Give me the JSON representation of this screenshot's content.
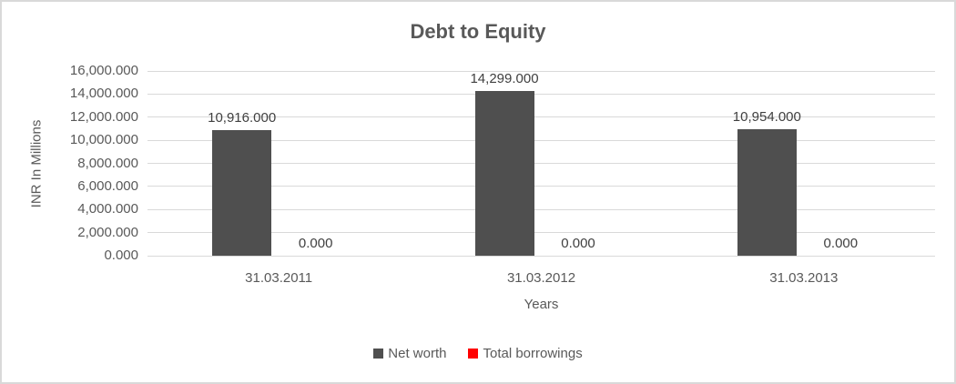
{
  "chart_data": {
    "type": "bar",
    "title": "Debt to Equity",
    "xlabel": "Years",
    "ylabel": "INR In Millions",
    "categories": [
      "31.03.2011",
      "31.03.2012",
      "31.03.2013"
    ],
    "series": [
      {
        "name": "Net worth",
        "color": "#4f4f4f",
        "values": [
          10916.0,
          14299.0,
          10954.0
        ],
        "data_labels": [
          "10,916.000",
          "14,299.000",
          "10,954.000"
        ]
      },
      {
        "name": "Total borrowings",
        "color": "#ff0000",
        "values": [
          0.0,
          0.0,
          0.0
        ],
        "data_labels": [
          "0.000",
          "0.000",
          "0.000"
        ]
      }
    ],
    "ylim": [
      0,
      16000
    ],
    "ytick_step": 2000,
    "ytick_labels": [
      "0.000",
      "2,000.000",
      "4,000.000",
      "6,000.000",
      "8,000.000",
      "10,000.000",
      "12,000.000",
      "14,000.000",
      "16,000.000"
    ],
    "grid": true,
    "legend_position": "bottom"
  },
  "colors": {
    "title_text": "#595959",
    "axis_text": "#595959",
    "data_label_text": "#404040",
    "gridline": "#d9d9d9",
    "frame_border": "#d9d9d9",
    "background": "#ffffff"
  }
}
